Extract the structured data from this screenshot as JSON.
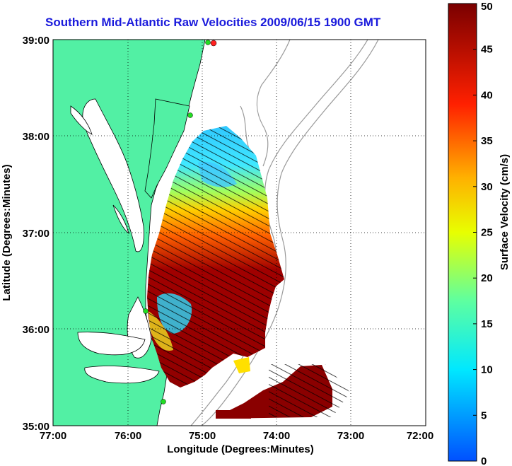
{
  "title": "Southern Mid-Atlantic Raw Velocities 2009/06/15 1900 GMT",
  "xlabel": "Longitude (Degrees:Minutes)",
  "ylabel": "Latitude (Degrees:Minutes)",
  "x_ticks": [
    "77:00",
    "76:00",
    "75:00",
    "74:00",
    "73:00",
    "72:00"
  ],
  "y_ticks": [
    "39:00",
    "38:00",
    "37:00",
    "36:00",
    "35:00"
  ],
  "colorbar": {
    "label": "Surface Velocity (cm/s)",
    "ticks": [
      "0",
      "5",
      "10",
      "15",
      "20",
      "25",
      "30",
      "35",
      "40",
      "45",
      "50"
    ],
    "min": 0,
    "max": 50
  },
  "colors": {
    "land": "#52f0a4",
    "title": "#1a1adc",
    "station": "#22dd22",
    "station_red": "#ff2020",
    "grid": "#000000",
    "bathymetry": "#9a9a9a"
  },
  "chart_data": {
    "type": "heatmap",
    "title": "Southern Mid-Atlantic Raw Velocities 2009/06/15 1900 GMT",
    "xlabel": "Longitude (Degrees:Minutes)",
    "ylabel": "Latitude (Degrees:Minutes)",
    "xlim": [
      -77,
      -72
    ],
    "ylim": [
      35,
      39
    ],
    "colorbar_range": [
      0,
      50
    ],
    "grid": true,
    "legend_placement": "right"
  }
}
